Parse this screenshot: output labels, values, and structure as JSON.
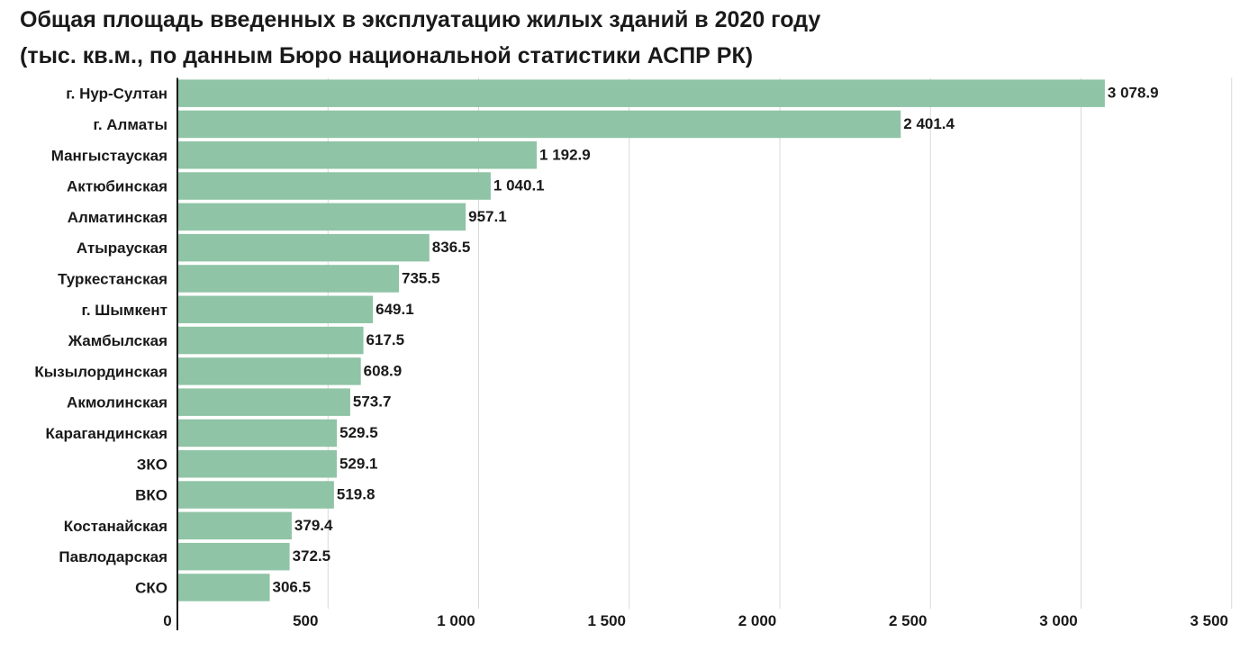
{
  "title": {
    "line1": "Общая площадь введенных в эксплуатацию жилых зданий в 2020 году",
    "line2": "(тыс. кв.м., по данным Бюро национальной статистики АСПР РК)"
  },
  "chart_data": {
    "type": "bar",
    "orientation": "horizontal",
    "categories": [
      "г. Нур-Султан",
      "г. Алматы",
      "Мангыстауская",
      "Актюбинская",
      "Алматинская",
      "Атырауская",
      "Туркестанская",
      "г. Шымкент",
      "Жамбылская",
      "Кызылординская",
      "Акмолинская",
      "Карагандинская",
      "ЗКО",
      "ВКО",
      "Костанайская",
      "Павлодарская",
      "СКО"
    ],
    "values": [
      3078.9,
      2401.4,
      1192.9,
      1040.1,
      957.1,
      836.5,
      735.5,
      649.1,
      617.5,
      608.9,
      573.7,
      529.5,
      529.1,
      519.8,
      379.4,
      372.5,
      306.5
    ],
    "value_labels": [
      "3 078.9",
      "2 401.4",
      "1 192.9",
      "1 040.1",
      "957.1",
      "836.5",
      "735.5",
      "649.1",
      "617.5",
      "608.9",
      "573.7",
      "529.5",
      "529.1",
      "519.8",
      "379.4",
      "372.5",
      "306.5"
    ],
    "xlim": [
      0,
      3500
    ],
    "xticks": [
      0,
      500,
      1000,
      1500,
      2000,
      2500,
      3000,
      3500
    ],
    "xtick_labels": [
      "0",
      "500",
      "1 000",
      "1 500",
      "2 000",
      "2 500",
      "3 000",
      "3 500"
    ],
    "grid": true,
    "bar_color": "#8fc4a6",
    "grid_color": "#d9d9d9",
    "axis_color": "#1a1a1a"
  }
}
